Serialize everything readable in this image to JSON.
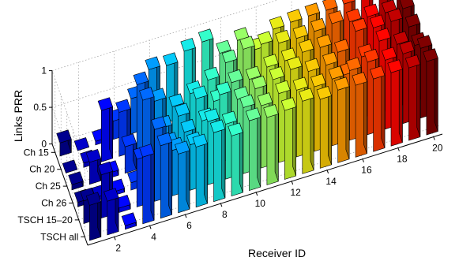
{
  "chart_data": {
    "type": "bar3d",
    "title": "",
    "xlabel": "Receiver ID",
    "ylabel": "",
    "zlabel": "Links PRR",
    "zlim": [
      0,
      1
    ],
    "z_ticks": [
      "0",
      "0.5",
      "1"
    ],
    "x_ticks": [
      "2",
      "4",
      "6",
      "8",
      "10",
      "12",
      "14",
      "16",
      "18",
      "20"
    ],
    "receivers": [
      1,
      2,
      3,
      4,
      5,
      6,
      7,
      8,
      9,
      10,
      11,
      12,
      13,
      14,
      15,
      16,
      17,
      18,
      19,
      20
    ],
    "categories": [
      "Ch 15",
      "Ch 20",
      "Ch 25",
      "Ch 26",
      "TSCH 15–20",
      "TSCH all"
    ],
    "colormap": [
      "#00008f",
      "#0000ff",
      "#0060ff",
      "#00c0ff",
      "#20ffdf",
      "#80ff80",
      "#dfff20",
      "#ffc000",
      "#ff6000",
      "#ff0000",
      "#800000"
    ],
    "grid": true,
    "values": [
      [
        0.18,
        0.0,
        0.05,
        0.25,
        0.48,
        0.8,
        0.78,
        0.9,
        0.95,
        0.72,
        0.82,
        0.62,
        0.82,
        0.84,
        0.85,
        0.85,
        0.86,
        0.96,
        0.88,
        0.7
      ],
      [
        0.0,
        0.06,
        0.7,
        0.6,
        0.9,
        0.6,
        0.45,
        0.55,
        0.66,
        0.82,
        0.93,
        0.92,
        0.86,
        0.85,
        0.87,
        0.9,
        0.85,
        0.84,
        0.82,
        0.8
      ],
      [
        0.07,
        0.3,
        0.07,
        0.36,
        0.92,
        0.46,
        0.55,
        0.71,
        0.6,
        0.78,
        0.75,
        0.84,
        0.85,
        0.89,
        0.88,
        0.74,
        0.95,
        0.92,
        0.93,
        0.78
      ],
      [
        0.06,
        0.05,
        0.05,
        0.1,
        0.12,
        0.46,
        0.56,
        0.64,
        0.92,
        0.78,
        0.85,
        0.9,
        0.96,
        0.86,
        0.87,
        0.66,
        0.83,
        0.97,
        0.85,
        0.76
      ],
      [
        0.31,
        0.59,
        0.06,
        0.65,
        0.98,
        0.62,
        0.62,
        0.86,
        0.75,
        0.9,
        0.85,
        0.94,
        0.91,
        0.88,
        0.91,
        0.95,
        0.99,
        0.94,
        0.95,
        0.95
      ],
      [
        0.48,
        0.46,
        0.05,
        0.91,
        0.99,
        0.8,
        0.82,
        0.94,
        0.82,
        0.95,
        0.92,
        0.94,
        0.99,
        0.94,
        0.99,
        0.98,
        0.99,
        1.0,
        0.99,
        1.0
      ]
    ]
  }
}
